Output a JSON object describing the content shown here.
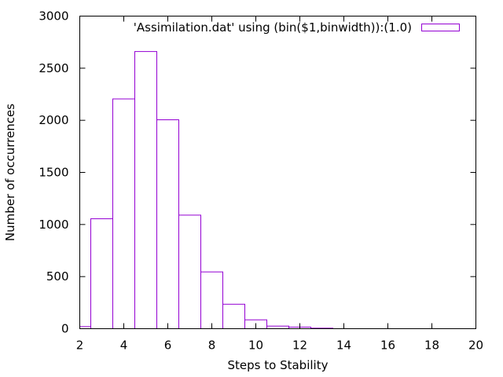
{
  "chart_data": {
    "type": "bar",
    "title": "",
    "xlabel": "Steps to Stability",
    "ylabel": "Number of occurrences",
    "xlim": [
      2,
      20
    ],
    "ylim": [
      0,
      3000
    ],
    "xticks": [
      2,
      4,
      6,
      8,
      10,
      12,
      14,
      16,
      18,
      20
    ],
    "yticks": [
      0,
      500,
      1000,
      1500,
      2000,
      2500,
      3000
    ],
    "bin_width": 1,
    "grid": false,
    "legend_position": "top-right",
    "series": [
      {
        "name": "'Assimilation.dat' using (bin($1,binwidth)):(1.0)",
        "color": "#9400d3",
        "bins": [
          {
            "x": 2,
            "value": 20
          },
          {
            "x": 3,
            "value": 1055
          },
          {
            "x": 4,
            "value": 2205
          },
          {
            "x": 5,
            "value": 2660
          },
          {
            "x": 6,
            "value": 2005
          },
          {
            "x": 7,
            "value": 1090
          },
          {
            "x": 8,
            "value": 545
          },
          {
            "x": 9,
            "value": 235
          },
          {
            "x": 10,
            "value": 85
          },
          {
            "x": 11,
            "value": 25
          },
          {
            "x": 12,
            "value": 15
          },
          {
            "x": 13,
            "value": 5
          }
        ]
      }
    ]
  }
}
